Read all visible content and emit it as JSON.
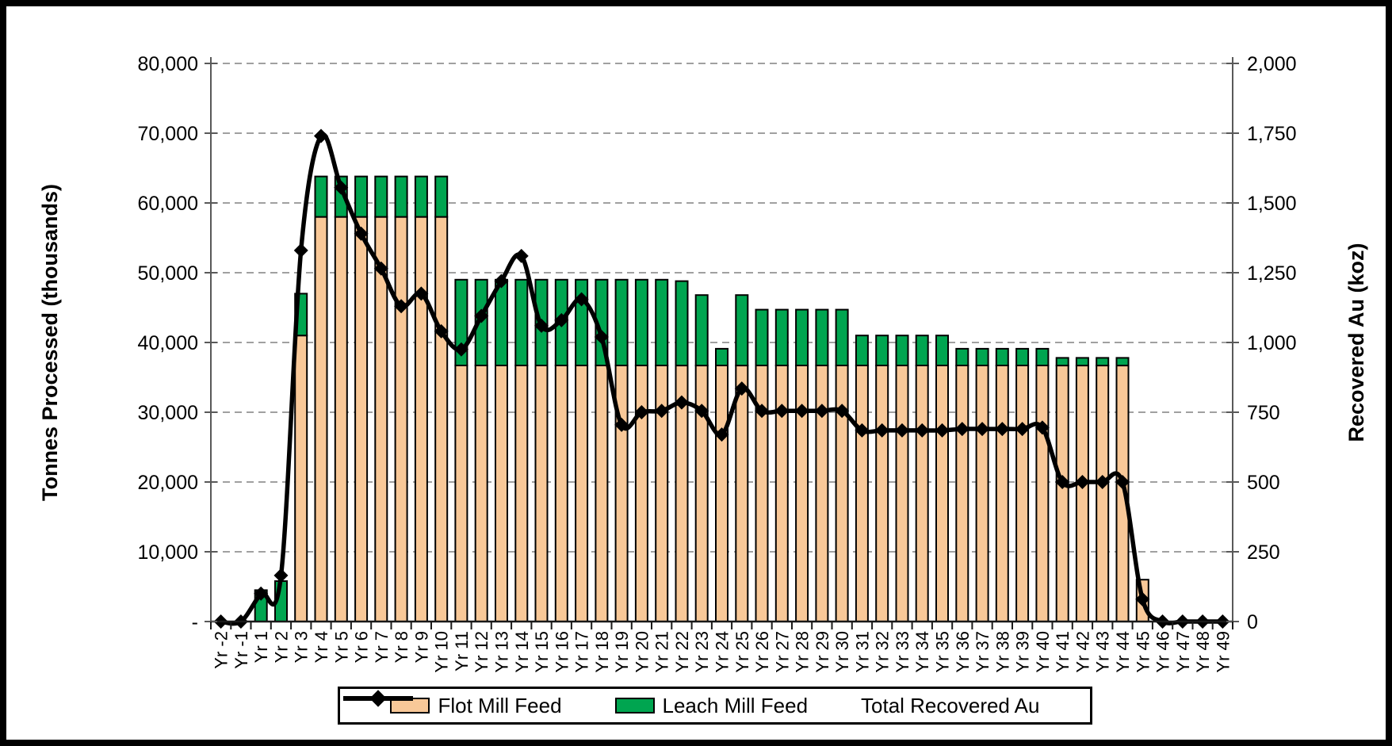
{
  "chart_data": {
    "type": "combo-stacked-bar-line",
    "title": "",
    "categories": [
      "Yr -2",
      "Yr -1",
      "Yr 1",
      "Yr 2",
      "Yr 3",
      "Yr 4",
      "Yr 5",
      "Yr 6",
      "Yr 7",
      "Yr 8",
      "Yr 9",
      "Yr 10",
      "Yr 11",
      "Yr 12",
      "Yr 13",
      "Yr 14",
      "Yr 15",
      "Yr 16",
      "Yr 17",
      "Yr 18",
      "Yr 19",
      "Yr 20",
      "Yr 21",
      "Yr 22",
      "Yr 23",
      "Yr 24",
      "Yr 25",
      "Yr 26",
      "Yr 27",
      "Yr 28",
      "Yr 29",
      "Yr 30",
      "Yr 31",
      "Yr 32",
      "Yr 33",
      "Yr 34",
      "Yr 35",
      "Yr 36",
      "Yr 37",
      "Yr 38",
      "Yr 39",
      "Yr 40",
      "Yr 41",
      "Yr 42",
      "Yr 43",
      "Yr 44",
      "Yr 45",
      "Yr 46",
      "Yr 47",
      "Yr 48",
      "Yr 49"
    ],
    "series": [
      {
        "name": "Flot Mill Feed",
        "type": "bar",
        "stack": "feed",
        "axis": "left",
        "color": "#F8C898",
        "values": [
          0,
          0,
          0,
          0,
          41000,
          58000,
          58000,
          58000,
          58000,
          58000,
          58000,
          58000,
          36700,
          36700,
          36700,
          36700,
          36700,
          36700,
          36700,
          36700,
          36700,
          36700,
          36700,
          36700,
          36700,
          36700,
          36700,
          36700,
          36700,
          36700,
          36700,
          36700,
          36700,
          36700,
          36700,
          36700,
          36700,
          36700,
          36700,
          36700,
          36700,
          36700,
          36700,
          36700,
          36700,
          36700,
          6000,
          0,
          0,
          0,
          0
        ]
      },
      {
        "name": "Leach Mill Feed",
        "type": "bar",
        "stack": "feed",
        "axis": "left",
        "color": "#00A550",
        "values": [
          0,
          0,
          4500,
          5800,
          6000,
          5800,
          5800,
          5800,
          5800,
          5800,
          5800,
          5800,
          12300,
          12300,
          12300,
          12300,
          12300,
          12300,
          12300,
          12300,
          12300,
          12300,
          12300,
          12100,
          10100,
          2400,
          10100,
          8000,
          8000,
          8000,
          8000,
          8000,
          4300,
          4300,
          4300,
          4300,
          4300,
          2400,
          2400,
          2400,
          2400,
          2400,
          1100,
          1100,
          1100,
          1100,
          0,
          0,
          0,
          0,
          0
        ]
      },
      {
        "name": "Total Recovered Au",
        "type": "line",
        "axis": "right",
        "color": "#000000",
        "marker": "diamond",
        "smooth": true,
        "values": [
          0,
          0,
          100,
          165,
          1330,
          1740,
          1555,
          1390,
          1265,
          1130,
          1175,
          1040,
          975,
          1095,
          1220,
          1310,
          1060,
          1080,
          1155,
          1020,
          705,
          750,
          755,
          785,
          755,
          670,
          835,
          755,
          755,
          755,
          755,
          755,
          685,
          685,
          685,
          685,
          685,
          690,
          690,
          690,
          690,
          695,
          500,
          500,
          500,
          500,
          80,
          0,
          0,
          0,
          0
        ]
      }
    ],
    "left_axis": {
      "title": "Tonnes Processed (thousands)",
      "min": 0,
      "max": 80000,
      "step": 10000,
      "tick_values": [
        80000,
        70000,
        60000,
        50000,
        40000,
        30000,
        20000,
        10000,
        0
      ],
      "tick_labels": [
        "80,000",
        "70,000",
        "60,000",
        "50,000",
        "40,000",
        "30,000",
        "20,000",
        "10,000",
        "-"
      ]
    },
    "right_axis": {
      "title": "Recovered Au (koz)",
      "min": 0,
      "max": 2000,
      "step": 250,
      "tick_values": [
        2000,
        1750,
        1500,
        1250,
        1000,
        750,
        500,
        250,
        0
      ],
      "tick_labels": [
        "2,000",
        "1,750",
        "1,500",
        "1,250",
        "1,000",
        "750",
        "500",
        "250",
        "0"
      ]
    },
    "grid": "horizontal-dashed",
    "gridline_color": "#A0A0A0",
    "axis_line_color": "#595959",
    "legend_position": "bottom",
    "legend": {
      "flot_label": "Flot Mill Feed",
      "leach_label": "Leach Mill Feed",
      "au_label": "Total Recovered Au"
    }
  }
}
